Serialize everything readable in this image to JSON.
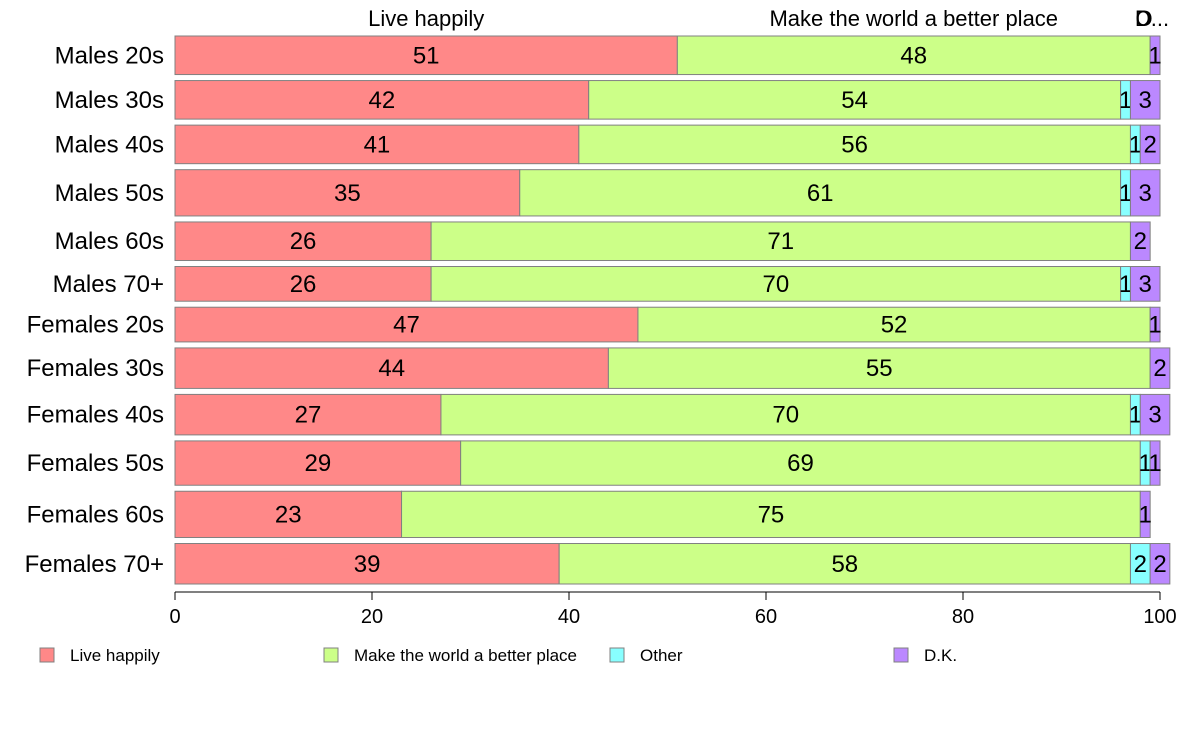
{
  "chart_data": {
    "type": "bar",
    "orientation": "horizontal",
    "stacked": true,
    "categories": [
      "Males 20s",
      "Males 30s",
      "Males 40s",
      "Males 50s",
      "Males 60s",
      "Males 70+",
      "Females 20s",
      "Females 30s",
      "Females 40s",
      "Females 50s",
      "Females 60s",
      "Females 70+"
    ],
    "series": [
      {
        "name": "Live happily",
        "color": "#ff8888",
        "values": [
          51,
          42,
          41,
          35,
          26,
          26,
          47,
          44,
          27,
          29,
          23,
          39
        ]
      },
      {
        "name": "Make the world a better place",
        "color": "#ccff88",
        "values": [
          48,
          54,
          56,
          61,
          71,
          70,
          52,
          55,
          70,
          69,
          75,
          58
        ]
      },
      {
        "name": "Other",
        "color": "#88ffff",
        "values": [
          0,
          1,
          1,
          1,
          0,
          1,
          0,
          0,
          1,
          1,
          0,
          2
        ]
      },
      {
        "name": "D.K.",
        "color": "#bb88ff",
        "values": [
          1,
          3,
          2,
          3,
          2,
          3,
          1,
          2,
          3,
          1,
          1,
          2
        ]
      }
    ],
    "row_weights": [
      1,
      1,
      1,
      1.2,
      1,
      0.9,
      0.9,
      1.05,
      1.05,
      1.15,
      1.2,
      1.05
    ],
    "top_labels": [
      "Live happily",
      "Make the world a better place",
      "O",
      "D..."
    ],
    "xlim": [
      0,
      100
    ],
    "xticks": [
      0,
      20,
      40,
      60,
      80,
      100
    ],
    "legend_position": "bottom",
    "grid": false
  }
}
